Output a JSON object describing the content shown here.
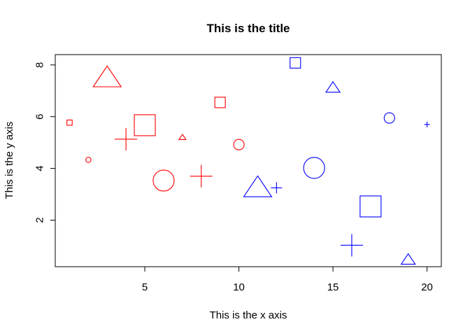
{
  "chart_data": {
    "type": "scatter",
    "title": "This is the title",
    "xlabel": "This is the x axis",
    "ylabel": "This is the y axis",
    "xlim": [
      0.24,
      20.76
    ],
    "ylim": [
      0.2,
      8.4
    ],
    "xticks": [
      5,
      10,
      15,
      20
    ],
    "yticks": [
      2,
      4,
      6,
      8
    ],
    "grid": false,
    "legend": "none",
    "point_sizes": [
      "small",
      "medium",
      "large"
    ],
    "point_shapes": [
      "square",
      "circle",
      "triangle",
      "cross"
    ],
    "colors": {
      "red": "#ff0000",
      "blue": "#0000ff"
    },
    "points": [
      {
        "x": 1,
        "y": 5.77,
        "shape": "square",
        "size": "small",
        "color": "red"
      },
      {
        "x": 2,
        "y": 4.33,
        "shape": "circle",
        "size": "small",
        "color": "red"
      },
      {
        "x": 3,
        "y": 7.5,
        "shape": "triangle",
        "size": "large",
        "color": "red"
      },
      {
        "x": 4,
        "y": 5.13,
        "shape": "cross",
        "size": "large",
        "color": "red"
      },
      {
        "x": 5,
        "y": 5.67,
        "shape": "square",
        "size": "large",
        "color": "red"
      },
      {
        "x": 6,
        "y": 3.53,
        "shape": "circle",
        "size": "large",
        "color": "red"
      },
      {
        "x": 7,
        "y": 5.2,
        "shape": "triangle",
        "size": "small",
        "color": "red"
      },
      {
        "x": 8,
        "y": 3.7,
        "shape": "cross",
        "size": "large",
        "color": "red"
      },
      {
        "x": 9,
        "y": 6.55,
        "shape": "square",
        "size": "medium",
        "color": "red"
      },
      {
        "x": 10,
        "y": 4.92,
        "shape": "circle",
        "size": "medium",
        "color": "red"
      },
      {
        "x": 11,
        "y": 3.25,
        "shape": "triangle",
        "size": "large",
        "color": "blue"
      },
      {
        "x": 12,
        "y": 3.25,
        "shape": "cross",
        "size": "medium",
        "color": "blue"
      },
      {
        "x": 13,
        "y": 8.08,
        "shape": "square",
        "size": "medium",
        "color": "blue"
      },
      {
        "x": 14,
        "y": 4.02,
        "shape": "circle",
        "size": "large",
        "color": "blue"
      },
      {
        "x": 15,
        "y": 7.12,
        "shape": "triangle",
        "size": "medium",
        "color": "blue"
      },
      {
        "x": 16,
        "y": 1.03,
        "shape": "cross",
        "size": "large",
        "color": "blue"
      },
      {
        "x": 17,
        "y": 2.53,
        "shape": "square",
        "size": "large",
        "color": "blue"
      },
      {
        "x": 18,
        "y": 5.95,
        "shape": "circle",
        "size": "medium",
        "color": "blue"
      },
      {
        "x": 19,
        "y": 0.47,
        "shape": "triangle",
        "size": "medium",
        "color": "blue"
      },
      {
        "x": 20,
        "y": 5.7,
        "shape": "cross",
        "size": "small",
        "color": "blue"
      }
    ]
  }
}
